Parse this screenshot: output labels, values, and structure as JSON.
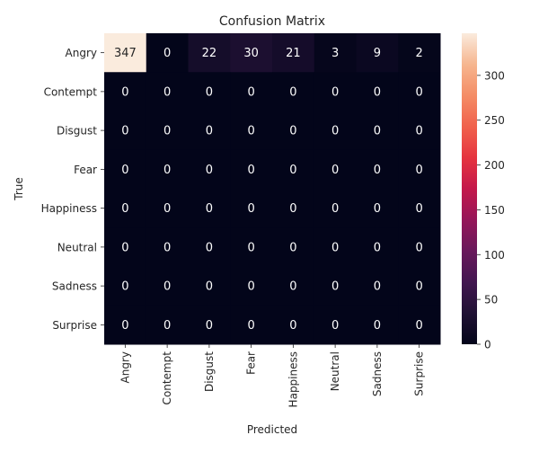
{
  "chart_data": {
    "type": "heatmap",
    "title": "Confusion Matrix",
    "xlabel": "Predicted",
    "ylabel": "True",
    "x_categories": [
      "Angry",
      "Contempt",
      "Disgust",
      "Fear",
      "Happiness",
      "Neutral",
      "Sadness",
      "Surprise"
    ],
    "y_categories": [
      "Angry",
      "Contempt",
      "Disgust",
      "Fear",
      "Happiness",
      "Neutral",
      "Sadness",
      "Surprise"
    ],
    "values": [
      [
        347,
        0,
        22,
        30,
        21,
        3,
        9,
        2
      ],
      [
        0,
        0,
        0,
        0,
        0,
        0,
        0,
        0
      ],
      [
        0,
        0,
        0,
        0,
        0,
        0,
        0,
        0
      ],
      [
        0,
        0,
        0,
        0,
        0,
        0,
        0,
        0
      ],
      [
        0,
        0,
        0,
        0,
        0,
        0,
        0,
        0
      ],
      [
        0,
        0,
        0,
        0,
        0,
        0,
        0,
        0
      ],
      [
        0,
        0,
        0,
        0,
        0,
        0,
        0,
        0
      ],
      [
        0,
        0,
        0,
        0,
        0,
        0,
        0,
        0
      ]
    ],
    "colorscale": "rocket",
    "colorbar": {
      "range": [
        0,
        347
      ],
      "ticks": [
        0,
        50,
        100,
        150,
        200,
        250,
        300
      ]
    }
  }
}
